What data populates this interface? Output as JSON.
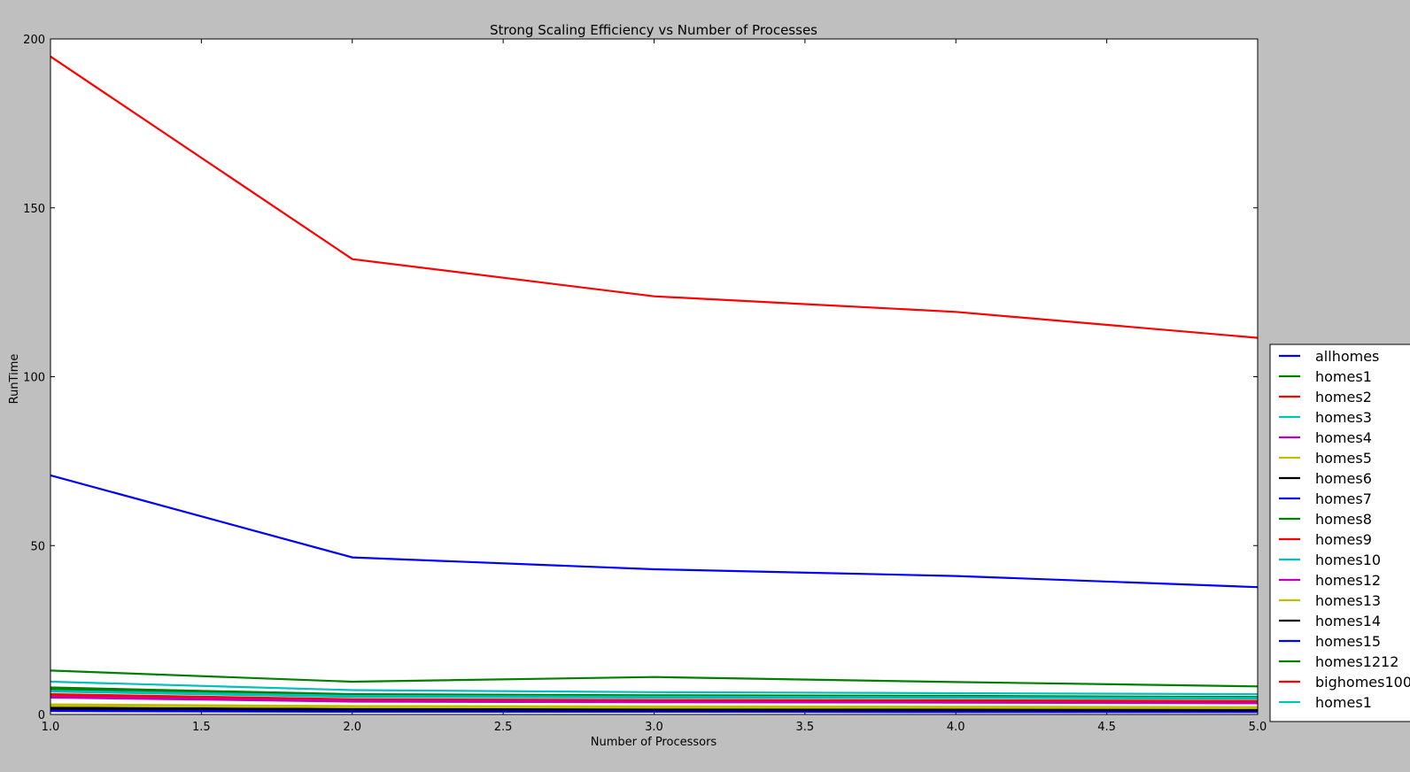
{
  "chart_data": {
    "type": "line",
    "title": "Strong Scaling Efficiency vs Number of Processes",
    "xlabel": "Number of Processors",
    "ylabel": "RunTime",
    "xlim": [
      1.0,
      5.0
    ],
    "ylim": [
      0,
      200
    ],
    "xticks": [
      "1.0",
      "1.5",
      "2.0",
      "2.5",
      "3.0",
      "3.5",
      "4.0",
      "4.5",
      "5.0"
    ],
    "yticks": [
      "0",
      "50",
      "100",
      "150",
      "200"
    ],
    "grid": false,
    "legend_position": "right",
    "x": [
      1,
      2,
      3,
      4,
      5
    ],
    "series": [
      {
        "name": "allhomes",
        "color": "#0000ff",
        "values": [
          70.8,
          46.5,
          43.0,
          41.0,
          37.7
        ]
      },
      {
        "name": "homes1",
        "color": "#008000",
        "values": [
          7.5,
          5.8,
          5.5,
          5.3,
          5.0
        ]
      },
      {
        "name": "homes2",
        "color": "#ff0000",
        "values": [
          6.0,
          4.5,
          4.3,
          4.2,
          4.0
        ]
      },
      {
        "name": "homes3",
        "color": "#00bfbf",
        "values": [
          6.8,
          5.2,
          5.0,
          4.9,
          4.7
        ]
      },
      {
        "name": "homes4",
        "color": "#bf00bf",
        "values": [
          5.0,
          3.8,
          3.6,
          3.5,
          3.3
        ]
      },
      {
        "name": "homes5",
        "color": "#bfbf00",
        "values": [
          3.0,
          2.5,
          2.4,
          2.3,
          2.2
        ]
      },
      {
        "name": "homes6",
        "color": "#000000",
        "values": [
          2.0,
          1.6,
          1.5,
          1.5,
          1.4
        ]
      },
      {
        "name": "homes7",
        "color": "#0000ff",
        "values": [
          1.5,
          1.2,
          1.1,
          1.1,
          1.0
        ]
      },
      {
        "name": "homes8",
        "color": "#008000",
        "values": [
          13.0,
          9.7,
          11.1,
          9.6,
          8.3
        ]
      },
      {
        "name": "homes9",
        "color": "#ff0000",
        "values": [
          5.5,
          4.2,
          4.0,
          3.9,
          3.7
        ]
      },
      {
        "name": "homes10",
        "color": "#00bfbf",
        "values": [
          9.7,
          7.2,
          6.6,
          6.3,
          6.0
        ]
      },
      {
        "name": "homes12",
        "color": "#bf00bf",
        "values": [
          5.2,
          4.0,
          3.8,
          3.6,
          3.4
        ]
      },
      {
        "name": "homes13",
        "color": "#bfbf00",
        "values": [
          2.6,
          2.2,
          2.1,
          2.0,
          1.9
        ]
      },
      {
        "name": "homes14",
        "color": "#000000",
        "values": [
          1.7,
          1.4,
          1.3,
          1.3,
          1.2
        ]
      },
      {
        "name": "homes15",
        "color": "#0000ff",
        "values": [
          1.0,
          0.8,
          0.8,
          0.7,
          0.7
        ]
      },
      {
        "name": "homes1212",
        "color": "#008000",
        "values": [
          8.0,
          6.0,
          5.7,
          5.5,
          5.2
        ]
      },
      {
        "name": "bighomes100",
        "color": "#ff0000",
        "values": [
          194.8,
          134.8,
          123.8,
          119.2,
          111.5
        ]
      },
      {
        "name": "homes1",
        "color": "#00bfbf",
        "values": [
          7.0,
          5.5,
          5.3,
          5.1,
          4.9
        ]
      }
    ]
  }
}
